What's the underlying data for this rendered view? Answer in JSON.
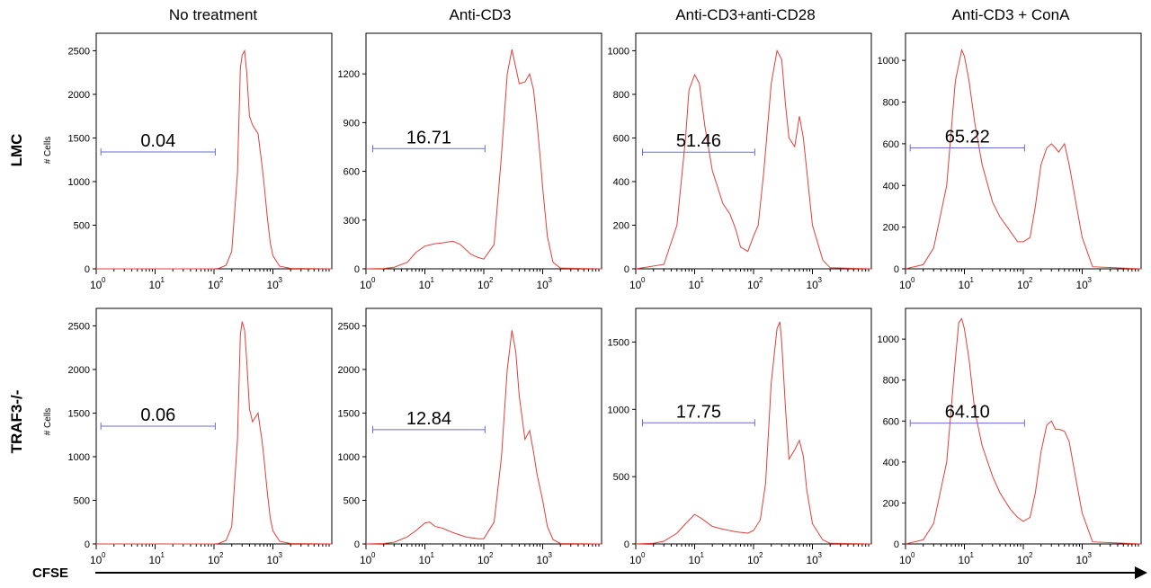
{
  "figure": {
    "row_labels": [
      "LMC",
      "TRAF3-/-"
    ],
    "y_axis_label": "# Cells",
    "x_axis_label": "CFSE",
    "colors": {
      "histogram": "#e0403a",
      "gate": "#6b6bd6",
      "axis": "#000000"
    }
  },
  "chart_data": [
    {
      "type": "area",
      "title": "No treatment",
      "row": "LMC",
      "xscale": "log",
      "xlim": [
        1,
        10000
      ],
      "ylim": [
        0,
        2700
      ],
      "yticks": [
        0,
        500,
        1000,
        1500,
        2000,
        2500
      ],
      "xticks": [
        1,
        10,
        100,
        1000
      ],
      "gate": {
        "x": [
          1.2,
          105
        ],
        "y": 1340,
        "label": "0.04"
      },
      "x": [
        1,
        100,
        120,
        160,
        200,
        250,
        280,
        300,
        330,
        360,
        400,
        450,
        500,
        560,
        600,
        650,
        700,
        800,
        900,
        1000,
        1300,
        2000,
        10000
      ],
      "y": [
        0,
        0,
        5,
        40,
        200,
        1100,
        2300,
        2450,
        2500,
        2250,
        1750,
        1650,
        1600,
        1550,
        1380,
        1200,
        1000,
        600,
        300,
        150,
        30,
        5,
        0
      ]
    },
    {
      "type": "area",
      "title": "Anti-CD3",
      "row": "LMC",
      "xscale": "log",
      "xlim": [
        1,
        10000
      ],
      "ylim": [
        0,
        1450
      ],
      "yticks": [
        0,
        300,
        600,
        900,
        1200
      ],
      "xticks": [
        1,
        10,
        100,
        1000
      ],
      "gate": {
        "x": [
          1.3,
          105
        ],
        "y": 740,
        "label": "16.71"
      },
      "x": [
        1,
        2,
        3,
        5,
        7,
        10,
        15,
        20,
        30,
        40,
        60,
        80,
        100,
        150,
        200,
        250,
        300,
        400,
        500,
        600,
        700,
        800,
        900,
        1000,
        1200,
        1500,
        2000,
        10000
      ],
      "y": [
        0,
        2,
        10,
        40,
        100,
        140,
        155,
        160,
        170,
        150,
        90,
        70,
        60,
        150,
        700,
        1200,
        1350,
        1140,
        1150,
        1200,
        1100,
        900,
        700,
        500,
        200,
        40,
        5,
        0
      ]
    },
    {
      "type": "area",
      "title": "Anti-CD3+anti-CD28",
      "row": "LMC",
      "xscale": "log",
      "xlim": [
        1,
        10000
      ],
      "ylim": [
        0,
        1080
      ],
      "yticks": [
        0,
        200,
        400,
        600,
        800,
        1000
      ],
      "xticks": [
        1,
        10,
        100,
        1000
      ],
      "gate": {
        "x": [
          1.3,
          105
        ],
        "y": 535,
        "label": "51.46"
      },
      "x": [
        1,
        3,
        5,
        7,
        8,
        10,
        12,
        15,
        20,
        30,
        40,
        50,
        60,
        80,
        100,
        120,
        150,
        200,
        250,
        300,
        350,
        400,
        500,
        600,
        700,
        800,
        1000,
        1500,
        2000,
        10000
      ],
      "y": [
        0,
        20,
        200,
        600,
        820,
        890,
        850,
        650,
        450,
        300,
        250,
        180,
        100,
        80,
        150,
        200,
        450,
        850,
        1000,
        960,
        750,
        600,
        560,
        700,
        600,
        450,
        200,
        40,
        5,
        0
      ]
    },
    {
      "type": "area",
      "title": "Anti-CD3 + ConA",
      "row": "LMC",
      "xscale": "log",
      "xlim": [
        1,
        10000
      ],
      "ylim": [
        0,
        1130
      ],
      "yticks": [
        0,
        200,
        400,
        600,
        800,
        1000
      ],
      "xticks": [
        1,
        10,
        100,
        1000
      ],
      "gate": {
        "x": [
          1.2,
          105
        ],
        "y": 580,
        "label": "65.22"
      },
      "x": [
        1,
        2,
        3,
        5,
        7,
        9,
        10,
        12,
        15,
        20,
        30,
        40,
        60,
        80,
        100,
        130,
        160,
        200,
        250,
        300,
        350,
        400,
        500,
        600,
        800,
        1000,
        1500,
        10000
      ],
      "y": [
        0,
        20,
        100,
        400,
        900,
        1050,
        1020,
        900,
        700,
        500,
        320,
        250,
        180,
        130,
        130,
        150,
        300,
        500,
        580,
        600,
        580,
        560,
        600,
        500,
        300,
        150,
        10,
        0
      ]
    },
    {
      "type": "area",
      "title": "No treatment",
      "row": "TRAF3-/-",
      "xscale": "log",
      "xlim": [
        1,
        10000
      ],
      "ylim": [
        0,
        2700
      ],
      "yticks": [
        0,
        500,
        1000,
        1500,
        2000,
        2500
      ],
      "xticks": [
        1,
        10,
        100,
        1000
      ],
      "gate": {
        "x": [
          1.2,
          105
        ],
        "y": 1350,
        "label": "0.06"
      },
      "x": [
        1,
        100,
        120,
        160,
        200,
        250,
        280,
        300,
        330,
        360,
        400,
        450,
        500,
        560,
        600,
        650,
        700,
        800,
        900,
        1000,
        1300,
        2000,
        10000
      ],
      "y": [
        0,
        0,
        5,
        40,
        200,
        1200,
        2400,
        2550,
        2450,
        2100,
        1550,
        1400,
        1450,
        1500,
        1350,
        1200,
        1000,
        600,
        300,
        150,
        30,
        5,
        0
      ]
    },
    {
      "type": "area",
      "title": "Anti-CD3",
      "row": "TRAF3-/-",
      "xscale": "log",
      "xlim": [
        1,
        10000
      ],
      "ylim": [
        0,
        2700
      ],
      "yticks": [
        0,
        500,
        1000,
        1500,
        2000,
        2500
      ],
      "xticks": [
        1,
        10,
        100,
        1000
      ],
      "gate": {
        "x": [
          1.3,
          105
        ],
        "y": 1310,
        "label": "12.84"
      },
      "x": [
        1,
        2,
        3,
        5,
        7,
        10,
        12,
        15,
        20,
        30,
        50,
        80,
        100,
        150,
        200,
        250,
        300,
        350,
        400,
        500,
        600,
        700,
        800,
        1000,
        1200,
        1500,
        2000,
        10000
      ],
      "y": [
        0,
        5,
        20,
        80,
        150,
        240,
        250,
        200,
        180,
        130,
        80,
        60,
        60,
        250,
        1000,
        2000,
        2450,
        2200,
        1700,
        1200,
        1300,
        1050,
        800,
        500,
        200,
        50,
        5,
        0
      ]
    },
    {
      "type": "area",
      "title": "Anti-CD3+anti-CD28",
      "row": "TRAF3-/-",
      "xscale": "log",
      "xlim": [
        1,
        10000
      ],
      "ylim": [
        0,
        1750
      ],
      "yticks": [
        0,
        500,
        1000,
        1500
      ],
      "xticks": [
        1,
        10,
        100,
        1000
      ],
      "gate": {
        "x": [
          1.3,
          105
        ],
        "y": 900,
        "label": "17.75"
      },
      "x": [
        1,
        2,
        3,
        5,
        7,
        10,
        13,
        20,
        30,
        50,
        80,
        100,
        130,
        160,
        200,
        250,
        280,
        300,
        350,
        400,
        500,
        600,
        700,
        800,
        1000,
        1500,
        2000,
        10000
      ],
      "y": [
        0,
        5,
        20,
        80,
        150,
        220,
        190,
        130,
        110,
        90,
        80,
        100,
        180,
        450,
        1200,
        1600,
        1650,
        1500,
        1000,
        630,
        700,
        770,
        650,
        400,
        150,
        30,
        5,
        0
      ]
    },
    {
      "type": "area",
      "title": "Anti-CD3 + ConA",
      "row": "TRAF3-/-",
      "xscale": "log",
      "xlim": [
        1,
        10000
      ],
      "ylim": [
        0,
        1150
      ],
      "yticks": [
        0,
        200,
        400,
        600,
        800,
        1000
      ],
      "xticks": [
        1,
        10,
        100,
        1000
      ],
      "gate": {
        "x": [
          1.2,
          105
        ],
        "y": 590,
        "label": "64.10"
      },
      "x": [
        1,
        2,
        3,
        5,
        7,
        8,
        9,
        10,
        12,
        15,
        20,
        30,
        40,
        60,
        80,
        100,
        130,
        160,
        200,
        250,
        300,
        350,
        400,
        500,
        600,
        800,
        1000,
        1500,
        10000
      ],
      "y": [
        0,
        20,
        100,
        400,
        900,
        1080,
        1100,
        1050,
        900,
        650,
        480,
        330,
        250,
        170,
        130,
        110,
        130,
        250,
        450,
        580,
        600,
        560,
        560,
        550,
        500,
        300,
        150,
        10,
        0
      ]
    }
  ]
}
